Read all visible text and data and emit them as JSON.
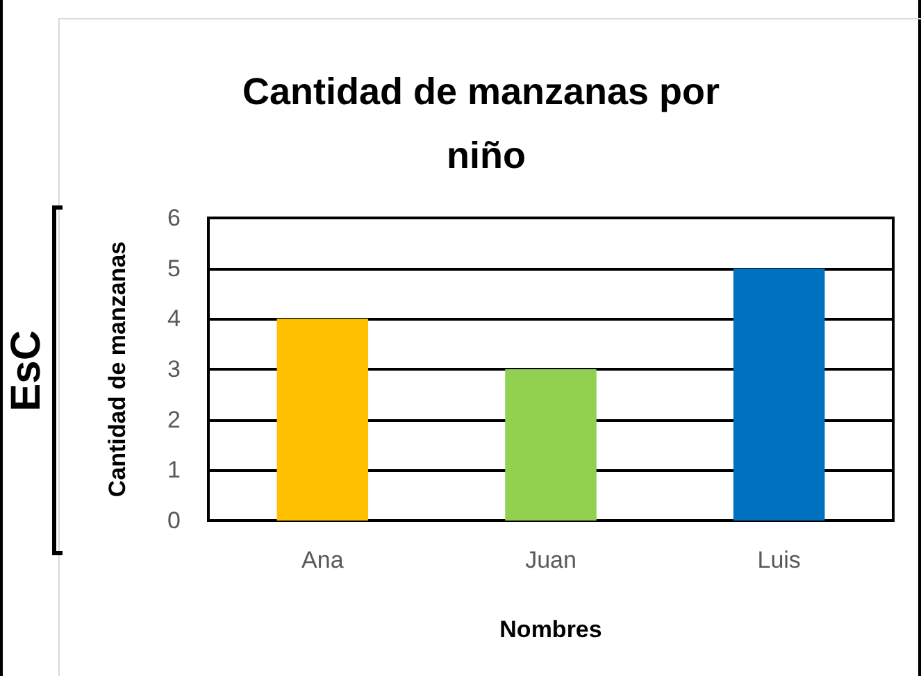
{
  "chart_data": {
    "type": "bar",
    "title": "Cantidad de manzanas por niño",
    "xlabel": "Nombres",
    "ylabel": "Cantidad de manzanas",
    "categories": [
      "Ana",
      "Juan",
      "Luis"
    ],
    "values": [
      4,
      3,
      5
    ],
    "colors": [
      "#ffc000",
      "#92d050",
      "#0070c0"
    ],
    "ylim": [
      0,
      6
    ],
    "yticks": [
      0,
      1,
      2,
      3,
      4,
      5,
      6
    ],
    "grid": "y",
    "annotations": [
      "EsC"
    ]
  }
}
